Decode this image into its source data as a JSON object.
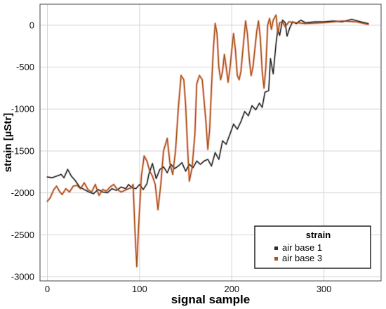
{
  "chart_data": {
    "type": "line",
    "title": "",
    "xlabel": "signal sample",
    "ylabel": "strain [µStr]",
    "xlim": [
      -8,
      362
    ],
    "ylim": [
      -3050,
      250
    ],
    "xticks": [
      0,
      100,
      200,
      300
    ],
    "yticks": [
      0,
      -500,
      -1000,
      -1500,
      -2000,
      -2500,
      -3000
    ],
    "xtick_labels": [
      "0",
      "100",
      "200",
      "300"
    ],
    "ytick_labels": [
      "0",
      "-500",
      "-1000",
      "-1500",
      "-2000",
      "-2500",
      "-3000"
    ],
    "grid": true,
    "legend": {
      "title": "strain",
      "placement": "bottom-right"
    },
    "series": [
      {
        "name": "air base 1",
        "color": "#2b2b2b",
        "points": [
          [
            0,
            -1810
          ],
          [
            5,
            -1820
          ],
          [
            10,
            -1800
          ],
          [
            15,
            -1780
          ],
          [
            18,
            -1820
          ],
          [
            22,
            -1720
          ],
          [
            26,
            -1800
          ],
          [
            30,
            -1850
          ],
          [
            35,
            -1930
          ],
          [
            40,
            -1960
          ],
          [
            45,
            -1990
          ],
          [
            50,
            -2010
          ],
          [
            55,
            -1960
          ],
          [
            60,
            -1990
          ],
          [
            65,
            -2000
          ],
          [
            70,
            -1950
          ],
          [
            75,
            -1970
          ],
          [
            80,
            -1930
          ],
          [
            85,
            -1950
          ],
          [
            88,
            -1900
          ],
          [
            92,
            -1940
          ],
          [
            96,
            -1950
          ],
          [
            100,
            -1900
          ],
          [
            104,
            -1960
          ],
          [
            108,
            -1890
          ],
          [
            110,
            -1780
          ],
          [
            114,
            -1650
          ],
          [
            118,
            -1830
          ],
          [
            122,
            -1720
          ],
          [
            126,
            -1690
          ],
          [
            130,
            -1760
          ],
          [
            134,
            -1660
          ],
          [
            138,
            -1710
          ],
          [
            142,
            -1680
          ],
          [
            146,
            -1640
          ],
          [
            150,
            -1740
          ],
          [
            154,
            -1660
          ],
          [
            158,
            -1700
          ],
          [
            162,
            -1620
          ],
          [
            166,
            -1660
          ],
          [
            170,
            -1620
          ],
          [
            174,
            -1600
          ],
          [
            178,
            -1680
          ],
          [
            182,
            -1520
          ],
          [
            186,
            -1600
          ],
          [
            190,
            -1380
          ],
          [
            194,
            -1420
          ],
          [
            198,
            -1300
          ],
          [
            202,
            -1180
          ],
          [
            206,
            -1240
          ],
          [
            210,
            -1150
          ],
          [
            214,
            -1030
          ],
          [
            218,
            -1080
          ],
          [
            222,
            -960
          ],
          [
            226,
            -1010
          ],
          [
            230,
            -930
          ],
          [
            233,
            -980
          ],
          [
            236,
            -800
          ],
          [
            240,
            -780
          ],
          [
            242,
            -400
          ],
          [
            245,
            -580
          ],
          [
            248,
            -220
          ],
          [
            250,
            -50
          ],
          [
            252,
            -120
          ],
          [
            255,
            60
          ],
          [
            258,
            30
          ],
          [
            260,
            -130
          ],
          [
            263,
            -30
          ],
          [
            266,
            40
          ],
          [
            270,
            20
          ],
          [
            275,
            60
          ],
          [
            280,
            30
          ],
          [
            290,
            40
          ],
          [
            300,
            40
          ],
          [
            310,
            50
          ],
          [
            320,
            40
          ],
          [
            330,
            70
          ],
          [
            340,
            40
          ],
          [
            348,
            20
          ]
        ]
      },
      {
        "name": "air base 3",
        "color": "#a6581c",
        "points": [
          [
            0,
            -2100
          ],
          [
            3,
            -2060
          ],
          [
            7,
            -1960
          ],
          [
            10,
            -1920
          ],
          [
            13,
            -1980
          ],
          [
            16,
            -2020
          ],
          [
            20,
            -1950
          ],
          [
            24,
            -1990
          ],
          [
            28,
            -1920
          ],
          [
            32,
            -1910
          ],
          [
            36,
            -1950
          ],
          [
            40,
            -1880
          ],
          [
            44,
            -1960
          ],
          [
            48,
            -1990
          ],
          [
            52,
            -1900
          ],
          [
            56,
            -2030
          ],
          [
            60,
            -1960
          ],
          [
            64,
            -1980
          ],
          [
            68,
            -1930
          ],
          [
            72,
            -1900
          ],
          [
            76,
            -1960
          ],
          [
            80,
            -1990
          ],
          [
            84,
            -1970
          ],
          [
            88,
            -1950
          ],
          [
            91,
            -1940
          ],
          [
            93,
            -1900
          ],
          [
            95,
            -2450
          ],
          [
            97,
            -2880
          ],
          [
            99,
            -2400
          ],
          [
            102,
            -1800
          ],
          [
            105,
            -1560
          ],
          [
            108,
            -1620
          ],
          [
            111,
            -1740
          ],
          [
            114,
            -1800
          ],
          [
            117,
            -1900
          ],
          [
            120,
            -2200
          ],
          [
            123,
            -1900
          ],
          [
            126,
            -1500
          ],
          [
            130,
            -1350
          ],
          [
            133,
            -1650
          ],
          [
            136,
            -1780
          ],
          [
            139,
            -1500
          ],
          [
            142,
            -1000
          ],
          [
            145,
            -600
          ],
          [
            148,
            -650
          ],
          [
            150,
            -950
          ],
          [
            152,
            -1450
          ],
          [
            154,
            -1860
          ],
          [
            157,
            -1700
          ],
          [
            160,
            -1300
          ],
          [
            162,
            -700
          ],
          [
            165,
            -600
          ],
          [
            168,
            -650
          ],
          [
            170,
            -900
          ],
          [
            172,
            -1150
          ],
          [
            174,
            -1480
          ],
          [
            176,
            -1250
          ],
          [
            178,
            -750
          ],
          [
            180,
            -300
          ],
          [
            182,
            20
          ],
          [
            184,
            -100
          ],
          [
            186,
            -500
          ],
          [
            188,
            -650
          ],
          [
            190,
            -550
          ],
          [
            192,
            -350
          ],
          [
            194,
            -500
          ],
          [
            196,
            -680
          ],
          [
            198,
            -520
          ],
          [
            200,
            -300
          ],
          [
            202,
            -100
          ],
          [
            204,
            -300
          ],
          [
            206,
            -600
          ],
          [
            208,
            -650
          ],
          [
            210,
            -550
          ],
          [
            212,
            -300
          ],
          [
            215,
            50
          ],
          [
            217,
            -100
          ],
          [
            219,
            -400
          ],
          [
            221,
            -600
          ],
          [
            223,
            -500
          ],
          [
            225,
            -300
          ],
          [
            227,
            -80
          ],
          [
            229,
            50
          ],
          [
            231,
            -150
          ],
          [
            233,
            -550
          ],
          [
            235,
            -750
          ],
          [
            237,
            -500
          ],
          [
            239,
            0
          ],
          [
            241,
            80
          ],
          [
            243,
            -50
          ],
          [
            245,
            60
          ],
          [
            248,
            120
          ],
          [
            250,
            -100
          ],
          [
            252,
            30
          ],
          [
            255,
            40
          ],
          [
            258,
            -20
          ],
          [
            262,
            40
          ],
          [
            270,
            30
          ],
          [
            280,
            20
          ],
          [
            300,
            30
          ],
          [
            320,
            50
          ],
          [
            335,
            40
          ],
          [
            348,
            10
          ]
        ]
      }
    ]
  }
}
